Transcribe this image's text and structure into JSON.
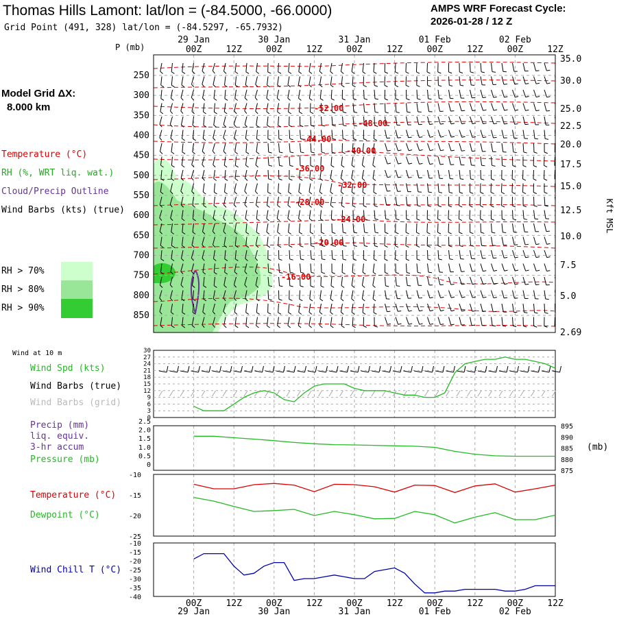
{
  "header": {
    "title": "Thomas Hills Lamont:  lat/lon = (-84.5000, -66.0000)",
    "grid_point": "Grid Point (491, 328) lat/lon = (-84.5297, -65.7932)",
    "cycle_line1": "AMPS WRF Forecast Cycle:",
    "cycle_line2": "2026-01-28 / 12  Z"
  },
  "model_grid": {
    "label": "Model Grid ΔX:",
    "value": "8.000 km"
  },
  "legend": {
    "temperature": "Temperature (°C)",
    "rh": "RH (%, WRT liq. wat.)",
    "cloud": "Cloud/Precip Outline",
    "wind_barbs": "Wind Barbs (kts) (true)",
    "rh_levels": [
      "RH > 70%",
      "RH > 80%",
      "RH > 90%"
    ]
  },
  "colors": {
    "temperature": "#dd0000",
    "rh70": "#ccffcc",
    "rh80": "#99e699",
    "rh90": "#33cc33",
    "green_line": "#22bb22",
    "cloud": "#663399",
    "windchill": "#0000aa",
    "grid": "#aaaaaa"
  },
  "time_axis": {
    "ticks": [
      "00Z",
      "12Z",
      "00Z",
      "12Z",
      "00Z",
      "12Z",
      "00Z",
      "12Z",
      "00Z",
      "12Z"
    ],
    "dates": [
      "29 Jan",
      "30 Jan",
      "31 Jan",
      "01 Feb",
      "02 Feb"
    ],
    "p_label": "P (mb)"
  },
  "chart_data": [
    {
      "type": "heatmap",
      "title": "Thomas Hills Lamont:  lat/lon = (-84.5000, -66.0000)",
      "ylabel": "P (mb)",
      "y_ticks": [
        250,
        300,
        350,
        400,
        450,
        500,
        550,
        600,
        650,
        700,
        750,
        800,
        850
      ],
      "ylim": [
        890,
        210
      ],
      "right_axis": {
        "label": "Kft MSL",
        "ticks": [
          "35.0",
          "30.0",
          "25.0",
          "22.5",
          "20.0",
          "17.5",
          "15.0",
          "12.5",
          "10.0",
          "7.5",
          "5.0",
          "2.69"
        ]
      },
      "temperature_contours": [
        {
          "label": "-52.00"
        },
        {
          "label": "-48.00"
        },
        {
          "label": "-44.00"
        },
        {
          "label": "-40.00"
        },
        {
          "label": "-36.00"
        },
        {
          "label": "-32.00"
        },
        {
          "label": "-28.00"
        },
        {
          "label": "-24.00"
        },
        {
          "label": "-20.00"
        },
        {
          "label": "-16.00"
        }
      ],
      "grid": true
    },
    {
      "type": "line",
      "title": "Wind at 10 m",
      "series": [
        {
          "name": "Wind Spd (kts)",
          "x_hours": [
            0,
            3,
            6,
            9,
            12,
            15,
            18,
            21,
            24,
            27,
            30,
            33,
            36,
            39,
            42,
            45,
            48,
            51,
            54,
            57,
            60,
            63,
            66,
            69,
            72,
            75,
            78,
            81,
            84,
            87,
            90,
            93,
            96,
            99,
            102,
            105,
            108
          ],
          "values": [
            5,
            3,
            3,
            3,
            6,
            9,
            11,
            12,
            11,
            8,
            7,
            11,
            14,
            15,
            15,
            15,
            13,
            12,
            12,
            12,
            11,
            10,
            10,
            9,
            9,
            11,
            20,
            24,
            25,
            26,
            26,
            27,
            26,
            26,
            25,
            24,
            22
          ]
        }
      ],
      "legend": [
        "Wind Spd (kts)",
        "Wind Barbs (true)",
        "Wind Barbs (grid)"
      ],
      "y_ticks": [
        0,
        3,
        6,
        9,
        12,
        15,
        18,
        21,
        24,
        27,
        30
      ],
      "ylim": [
        0,
        30
      ]
    },
    {
      "type": "line",
      "series": [
        {
          "name": "Pressure (mb)",
          "x_hours": [
            0,
            6,
            12,
            18,
            24,
            30,
            36,
            42,
            48,
            54,
            60,
            66,
            72,
            78,
            84,
            90,
            96,
            102,
            108
          ],
          "values": [
            890.3,
            890.3,
            889.6,
            889.0,
            888.3,
            887.5,
            886.9,
            886.5,
            886.4,
            886.2,
            886.0,
            885.8,
            885.3,
            883.5,
            882.2,
            881.5,
            881.3,
            881.3,
            881.3
          ]
        }
      ],
      "legend": [
        "Precip (mm)",
        "liq. equiv.",
        "3-hr accum",
        "Pressure (mb)"
      ],
      "y_ticks_left": [
        "0",
        "0.5",
        "1.0",
        "1.5",
        "2.0",
        "2.5"
      ],
      "y_ticks_right": [
        "875",
        "880",
        "885",
        "890",
        "895"
      ],
      "right_unit": "(mb)",
      "ylim_right": [
        875,
        895
      ]
    },
    {
      "type": "line",
      "series": [
        {
          "name": "Temperature (°C)",
          "x_hours": [
            0,
            6,
            12,
            18,
            24,
            30,
            36,
            42,
            48,
            54,
            60,
            66,
            72,
            78,
            84,
            90,
            96,
            102,
            108
          ],
          "values": [
            -12.4,
            -13.5,
            -13.5,
            -12.5,
            -12.2,
            -12.6,
            -14.2,
            -12.4,
            -12.5,
            -13.0,
            -14.3,
            -12.6,
            -12.7,
            -14.4,
            -12.8,
            -12.3,
            -14.3,
            -13.5,
            -12.6
          ]
        },
        {
          "name": "Dewpoint (°C)",
          "x_hours": [
            0,
            6,
            12,
            18,
            24,
            30,
            36,
            42,
            48,
            54,
            60,
            66,
            72,
            78,
            84,
            90,
            96,
            102,
            108
          ],
          "values": [
            -15.6,
            -16.5,
            -17.8,
            -19.0,
            -18.8,
            -18.5,
            -20.0,
            -19.0,
            -19.8,
            -20.8,
            -20.7,
            -19.0,
            -19.8,
            -21.8,
            -20.4,
            -19.3,
            -21.0,
            -21.0,
            -19.9
          ]
        }
      ],
      "y_ticks": [
        "-25",
        "-20",
        "-15",
        "-10"
      ],
      "ylim": [
        -25,
        -10
      ]
    },
    {
      "type": "line",
      "series": [
        {
          "name": "Wind Chill T (°C)",
          "x_hours": [
            0,
            3,
            6,
            9,
            12,
            15,
            18,
            21,
            24,
            27,
            30,
            33,
            36,
            39,
            42,
            45,
            48,
            51,
            54,
            57,
            60,
            63,
            66,
            69,
            72,
            75,
            78,
            81,
            84,
            87,
            90,
            93,
            96,
            99,
            102,
            105,
            108
          ],
          "values": [
            -19,
            -16,
            -16,
            -16,
            -23,
            -28,
            -27,
            -23,
            -21,
            -21,
            -31,
            -30,
            -30,
            -29,
            -28,
            -29,
            -30,
            -30,
            -26,
            -25,
            -24,
            -27,
            -33,
            -38,
            -38,
            -37,
            -37,
            -36,
            -36,
            -36,
            -36,
            -37,
            -37,
            -36,
            -34,
            -34,
            -34
          ]
        }
      ],
      "y_ticks": [
        "-40",
        "-35",
        "-30",
        "-25",
        "-20",
        "-15",
        "-10"
      ],
      "ylim": [
        -40,
        -10
      ]
    }
  ]
}
